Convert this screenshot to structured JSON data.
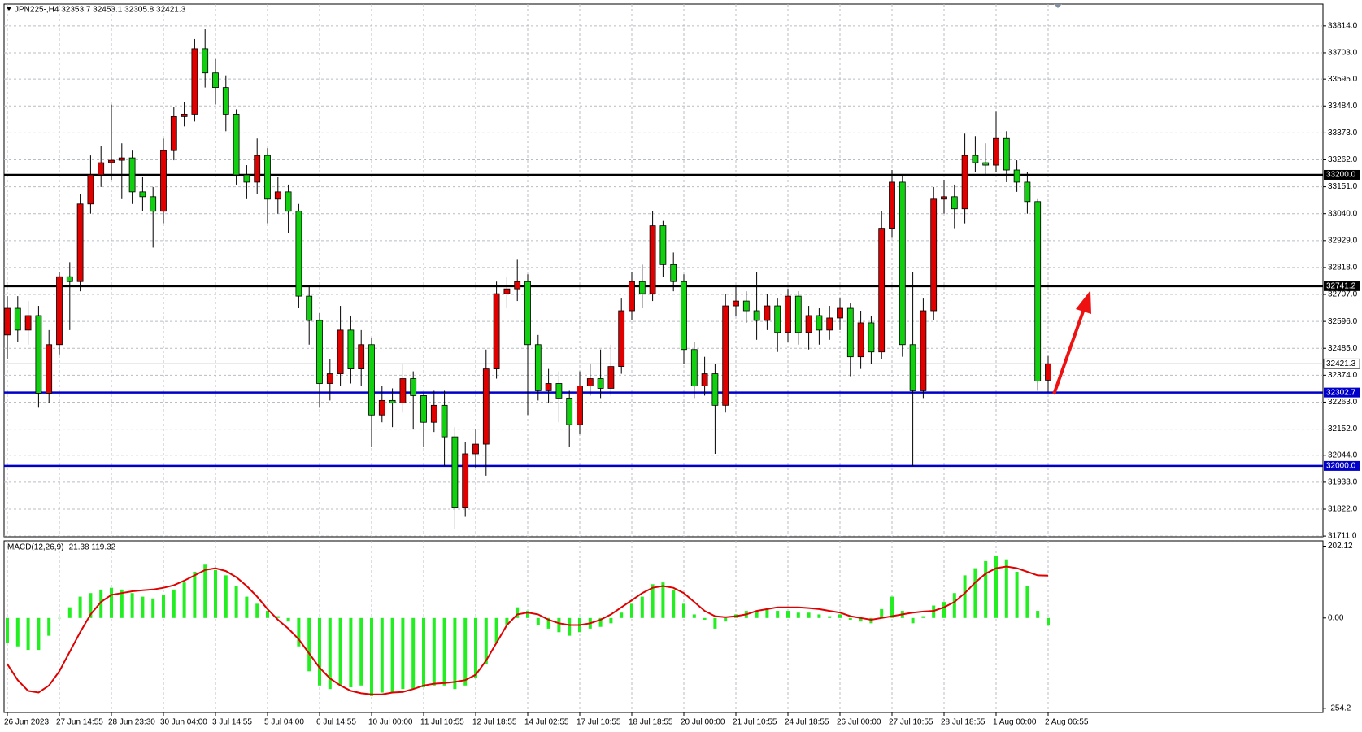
{
  "chart_data": [
    {
      "type": "candlestick",
      "title": "JPN225-,H4 32353.7 32453.1 32305.8 32421.3",
      "up_color": "#e00000",
      "down_color": "#10d010",
      "grid": true,
      "categories": [
        "26 Jun 2023",
        null,
        null,
        null,
        null,
        "27 Jun 14:55",
        null,
        null,
        null,
        null,
        "28 Jun 23:30",
        null,
        null,
        null,
        null,
        "30 Jun 04:00",
        null,
        null,
        null,
        null,
        "3 Jul 14:55",
        null,
        null,
        null,
        null,
        "5 Jul 04:00",
        null,
        null,
        null,
        null,
        "6 Jul 14:55",
        null,
        null,
        null,
        null,
        "10 Jul 00:00",
        null,
        null,
        null,
        null,
        "11 Jul 10:55",
        null,
        null,
        null,
        null,
        "12 Jul 18:55",
        null,
        null,
        null,
        null,
        "14 Jul 02:55",
        null,
        null,
        null,
        null,
        "17 Jul 10:55",
        null,
        null,
        null,
        null,
        "18 Jul 18:55",
        null,
        null,
        null,
        null,
        "20 Jul 00:00",
        null,
        null,
        null,
        null,
        "21 Jul 10:55",
        null,
        null,
        null,
        null,
        "24 Jul 18:55",
        null,
        null,
        null,
        null,
        "26 Jul 00:00",
        null,
        null,
        null,
        null,
        "27 Jul 10:55",
        null,
        null,
        null,
        null,
        "28 Jul 18:55",
        null,
        null,
        null,
        null,
        "1 Aug 00:00",
        null,
        null,
        null,
        null,
        "2 Aug 06:55"
      ],
      "open": [
        32540,
        32650,
        32560,
        32620,
        32300,
        32500,
        32780,
        32760,
        33080,
        33200,
        33250,
        33260,
        33270,
        33130,
        33110,
        33050,
        33300,
        33440,
        33450,
        33720,
        33620,
        33560,
        33450,
        33200,
        33170,
        33280,
        33100,
        33130,
        33050,
        32700,
        32600,
        32340,
        32380,
        32560,
        32400,
        32500,
        32210,
        32270,
        32260,
        32360,
        32290,
        32180,
        32250,
        32120,
        31830,
        32050,
        32090,
        32400,
        32710,
        32730,
        32760,
        32500,
        32310,
        32340,
        32280,
        32170,
        32330,
        32360,
        32320,
        32410,
        32640,
        32760,
        32710,
        32990,
        32830,
        32760,
        32480,
        32330,
        32380,
        32250,
        32660,
        32680,
        32640,
        32600,
        32660,
        32550,
        32700,
        32550,
        32620,
        32560,
        32610,
        32650,
        32450,
        32590,
        32470,
        32980,
        33170,
        32500,
        32310,
        32640,
        33100,
        33110,
        33060,
        33280,
        33250,
        33240,
        33350,
        33220,
        33170,
        33090,
        32353.7
      ],
      "high": [
        32700,
        32700,
        32680,
        32660,
        32560,
        32800,
        32840,
        33120,
        33280,
        33320,
        33490,
        33330,
        33300,
        33190,
        33150,
        33350,
        33480,
        33500,
        33760,
        33800,
        33680,
        33610,
        33470,
        33240,
        33350,
        33310,
        33190,
        33160,
        33080,
        32740,
        32630,
        32440,
        32660,
        32620,
        32560,
        32530,
        32330,
        32320,
        32420,
        32390,
        32300,
        32310,
        32310,
        32160,
        32100,
        32150,
        32480,
        32760,
        32780,
        32850,
        32790,
        32540,
        32400,
        32390,
        32310,
        32390,
        32420,
        32480,
        32500,
        32690,
        32800,
        32830,
        33050,
        33010,
        32880,
        32790,
        32510,
        32450,
        32420,
        32710,
        32740,
        32720,
        32800,
        32710,
        32690,
        32730,
        32720,
        32660,
        32650,
        32660,
        32690,
        32670,
        32640,
        32620,
        33050,
        33220,
        33200,
        32800,
        32690,
        33150,
        33180,
        33160,
        33370,
        33360,
        33330,
        33460,
        33380,
        33260,
        33210,
        33100,
        32453.1
      ],
      "low": [
        32440,
        32510,
        32500,
        32240,
        32260,
        32460,
        32560,
        32720,
        33040,
        33150,
        33180,
        33100,
        33080,
        33050,
        32900,
        33000,
        33260,
        33400,
        33420,
        33560,
        33490,
        33380,
        33160,
        33100,
        33120,
        33000,
        33040,
        32960,
        32650,
        32500,
        32240,
        32270,
        32330,
        32340,
        32330,
        32080,
        32180,
        32160,
        32220,
        32150,
        32080,
        32140,
        32000,
        31740,
        31790,
        31990,
        31960,
        32360,
        32650,
        32680,
        32210,
        32270,
        32260,
        32180,
        32080,
        32130,
        32290,
        32280,
        32290,
        32380,
        32600,
        32650,
        32680,
        32780,
        32720,
        32420,
        32280,
        32290,
        32050,
        32220,
        32620,
        32590,
        32520,
        32560,
        32470,
        32510,
        32500,
        32480,
        32500,
        32520,
        32560,
        32370,
        32400,
        32420,
        32440,
        32940,
        32450,
        32000,
        32280,
        32600,
        33040,
        32980,
        33000,
        33210,
        33200,
        33210,
        33170,
        33130,
        33040,
        32310,
        32305.8
      ],
      "close": [
        32650,
        32560,
        32620,
        32300,
        32500,
        32780,
        32760,
        33080,
        33200,
        33250,
        33260,
        33270,
        33130,
        33110,
        33050,
        33300,
        33440,
        33450,
        33720,
        33620,
        33560,
        33450,
        33200,
        33170,
        33280,
        33100,
        33130,
        33050,
        32700,
        32600,
        32340,
        32380,
        32560,
        32400,
        32500,
        32210,
        32270,
        32260,
        32360,
        32290,
        32180,
        32250,
        32120,
        31830,
        32050,
        32090,
        32400,
        32710,
        32730,
        32760,
        32500,
        32310,
        32340,
        32280,
        32170,
        32330,
        32360,
        32320,
        32410,
        32640,
        32760,
        32710,
        32990,
        32830,
        32760,
        32480,
        32330,
        32380,
        32250,
        32660,
        32680,
        32640,
        32600,
        32660,
        32550,
        32700,
        32550,
        32620,
        32560,
        32610,
        32650,
        32450,
        32590,
        32470,
        32980,
        33170,
        32500,
        32310,
        32640,
        33100,
        33110,
        33060,
        33280,
        33250,
        33240,
        33350,
        33220,
        33170,
        33090,
        32350,
        32421.3
      ],
      "ylim": [
        31708,
        33904
      ],
      "yticks": [
        {
          "value": 33814,
          "label": "33814.0"
        },
        {
          "value": 33703,
          "label": "33703.0"
        },
        {
          "value": 33595,
          "label": "33595.0"
        },
        {
          "value": 33484,
          "label": "33484.0"
        },
        {
          "value": 33373,
          "label": "33373.0"
        },
        {
          "value": 33262,
          "label": "33262.0"
        },
        {
          "value": 33151,
          "label": "33151.0"
        },
        {
          "value": 33040,
          "label": "33040.0"
        },
        {
          "value": 32929,
          "label": "32929.0"
        },
        {
          "value": 32818,
          "label": "32818.0"
        },
        {
          "value": 32707,
          "label": "32707.0"
        },
        {
          "value": 32596,
          "label": "32596.0"
        },
        {
          "value": 32485,
          "label": "32485.0"
        },
        {
          "value": 32374,
          "label": "32374.0"
        },
        {
          "value": 32263,
          "label": "32263.0"
        },
        {
          "value": 32152,
          "label": "32152.0"
        },
        {
          "value": 32044,
          "label": "32044.0"
        },
        {
          "value": 31933,
          "label": "31933.0"
        },
        {
          "value": 31822,
          "label": "31822.0"
        },
        {
          "value": 31711,
          "label": "31711.0"
        }
      ],
      "hlines": [
        {
          "value": 33200,
          "label": "33200.0",
          "color": "#000000"
        },
        {
          "value": 32741.2,
          "color": "#000000"
        },
        {
          "value": 32302.7,
          "color": "#0000c8"
        },
        {
          "value": 32000,
          "label": "32000.0",
          "color": "#0000c8"
        }
      ],
      "last_price": 32421.3
    },
    {
      "type": "macd",
      "title": "MACD(12,26,9) -21.38 119.32",
      "ylim": [
        -266,
        217
      ],
      "yticks": [
        202.12,
        {
          "value": 0,
          "label": "0.00"
        },
        -254.2
      ],
      "histogram": {
        "color": "#22ee22",
        "values": [
          -70,
          -80,
          -90,
          -90,
          -50,
          0,
          30,
          60,
          70,
          80,
          85,
          80,
          70,
          60,
          55,
          65,
          80,
          100,
          130,
          150,
          135,
          120,
          90,
          60,
          40,
          20,
          5,
          -10,
          -80,
          -150,
          -190,
          -200,
          -190,
          -195,
          -190,
          -220,
          -210,
          -210,
          -200,
          -200,
          -195,
          -190,
          -190,
          -200,
          -190,
          -170,
          -130,
          -70,
          -20,
          30,
          20,
          -20,
          -30,
          -40,
          -50,
          -40,
          -30,
          -25,
          -15,
          15,
          40,
          60,
          95,
          100,
          80,
          40,
          10,
          -5,
          -30,
          -10,
          10,
          20,
          20,
          25,
          20,
          20,
          15,
          15,
          10,
          5,
          10,
          -5,
          -10,
          -15,
          25,
          60,
          20,
          -15,
          5,
          35,
          45,
          70,
          120,
          140,
          160,
          175,
          165,
          130,
          90,
          20,
          -21.38
        ]
      },
      "signal": {
        "color": "#e00000",
        "values": [
          -130,
          -175,
          -205,
          -210,
          -190,
          -150,
          -95,
          -40,
          10,
          45,
          65,
          70,
          75,
          78,
          80,
          85,
          92,
          105,
          120,
          135,
          140,
          132,
          115,
          90,
          60,
          25,
          -5,
          -30,
          -60,
          -100,
          -140,
          -170,
          -190,
          -205,
          -212,
          -215,
          -215,
          -210,
          -208,
          -200,
          -190,
          -185,
          -183,
          -180,
          -175,
          -160,
          -120,
          -70,
          -20,
          10,
          15,
          10,
          -5,
          -15,
          -20,
          -20,
          -15,
          -5,
          10,
          30,
          50,
          70,
          85,
          90,
          85,
          70,
          45,
          20,
          5,
          2,
          5,
          10,
          20,
          25,
          30,
          30,
          30,
          28,
          25,
          20,
          15,
          5,
          0,
          -5,
          0,
          5,
          10,
          15,
          18,
          20,
          30,
          45,
          70,
          100,
          125,
          140,
          145,
          140,
          130,
          120,
          119.32
        ]
      }
    }
  ]
}
